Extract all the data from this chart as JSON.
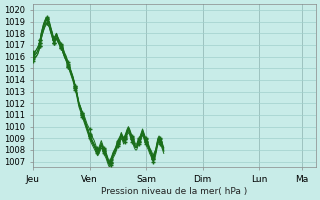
{
  "bg_color": "#c8ece8",
  "grid_color": "#a0d0cc",
  "line_color": "#1a6e1a",
  "marker_color": "#1a6e1a",
  "ylabel_text": "Pression niveau de la mer( hPa )",
  "ylim": [
    1006.5,
    1020.5
  ],
  "yticks": [
    1007,
    1008,
    1009,
    1010,
    1011,
    1012,
    1013,
    1014,
    1015,
    1016,
    1017,
    1018,
    1019,
    1020
  ],
  "xtick_labels": [
    "Jeu",
    "Ven",
    "Sam",
    "Dim",
    "Lun",
    "Ma"
  ],
  "xtick_positions": [
    0,
    48,
    96,
    144,
    192,
    228
  ],
  "xlim": [
    0,
    240
  ],
  "series": [
    [
      1016.0,
      1016.0,
      1016.2,
      1016.3,
      1016.5,
      1016.8,
      1017.2,
      1017.8,
      1018.2,
      1018.5,
      1018.8,
      1019.0,
      1019.2,
      1019.1,
      1018.8,
      1018.4,
      1018.0,
      1017.5,
      1017.2,
      1017.5,
      1017.8,
      1017.5,
      1017.2,
      1017.0,
      1016.8,
      1016.5,
      1016.2,
      1016.0,
      1015.8,
      1015.5,
      1015.2,
      1015.0,
      1014.8,
      1014.5,
      1014.2,
      1013.8,
      1013.5,
      1013.0,
      1012.5,
      1012.0,
      1011.8,
      1011.5,
      1011.2,
      1011.0,
      1010.8,
      1010.5,
      1010.2,
      1010.0,
      1009.8,
      1009.5,
      1009.2,
      1009.0,
      1008.8,
      1008.5,
      1008.2,
      1008.0,
      1008.2,
      1008.5,
      1008.8,
      1008.5,
      1008.2,
      1008.0,
      1007.8,
      1007.5,
      1007.2,
      1007.0,
      1007.2,
      1007.5,
      1007.8,
      1008.0,
      1008.2,
      1008.5,
      1008.8,
      1009.0,
      1009.2,
      1009.5,
      1009.2,
      1009.0,
      1009.2,
      1009.5,
      1009.8,
      1010.0,
      1009.8,
      1009.5,
      1009.2,
      1009.0,
      1008.8,
      1008.5,
      1008.5,
      1008.8,
      1009.0,
      1009.2,
      1009.5,
      1009.8,
      1009.5,
      1009.2,
      1009.0,
      1008.8,
      1008.5,
      1008.2,
      1008.0,
      1007.8,
      1007.5,
      1007.8,
      1008.0,
      1008.5,
      1009.0,
      1009.2,
      1009.0,
      1008.8,
      1008.5,
      1008.2
    ],
    [
      1016.2,
      1016.2,
      1016.4,
      1016.6,
      1016.8,
      1017.0,
      1017.4,
      1018.0,
      1018.4,
      1018.8,
      1019.1,
      1019.3,
      1019.4,
      1019.2,
      1019.0,
      1018.6,
      1018.2,
      1017.8,
      1017.5,
      1017.8,
      1018.0,
      1017.7,
      1017.4,
      1017.2,
      1017.0,
      1016.8,
      1016.5,
      1016.2,
      1016.0,
      1015.7,
      1015.4,
      1015.1,
      1014.8,
      1014.5,
      1014.2,
      1013.8,
      1013.4,
      1013.0,
      1012.5,
      1012.0,
      1011.7,
      1011.4,
      1011.1,
      1010.8,
      1010.5,
      1010.2,
      1009.9,
      1009.6,
      1009.3,
      1009.0,
      1008.8,
      1008.6,
      1008.4,
      1008.2,
      1008.0,
      1007.8,
      1008.0,
      1008.2,
      1008.5,
      1008.3,
      1008.0,
      1007.8,
      1007.6,
      1007.3,
      1007.0,
      1006.8,
      1007.0,
      1007.3,
      1007.6,
      1007.8,
      1008.0,
      1008.3,
      1008.6,
      1008.8,
      1009.0,
      1009.3,
      1009.1,
      1008.8,
      1009.0,
      1009.3,
      1009.6,
      1009.8,
      1009.6,
      1009.3,
      1009.0,
      1008.8,
      1008.5,
      1008.3,
      1008.3,
      1008.6,
      1008.8,
      1009.0,
      1009.3,
      1009.6,
      1009.3,
      1009.0,
      1008.8,
      1008.5,
      1008.3,
      1008.0,
      1007.8,
      1007.5,
      1007.3,
      1007.6,
      1007.8,
      1008.3,
      1008.8,
      1009.0,
      1008.8,
      1008.6,
      1008.3,
      1008.0
    ],
    [
      1015.8,
      1015.9,
      1016.0,
      1016.1,
      1016.2,
      1016.5,
      1016.9,
      1017.5,
      1017.9,
      1018.2,
      1018.5,
      1018.7,
      1018.9,
      1018.7,
      1018.5,
      1018.1,
      1017.8,
      1017.4,
      1017.2,
      1017.4,
      1017.6,
      1017.3,
      1017.1,
      1016.9,
      1016.7,
      1016.5,
      1016.2,
      1015.9,
      1015.7,
      1015.4,
      1015.1,
      1014.9,
      1014.6,
      1014.3,
      1014.0,
      1013.7,
      1013.3,
      1012.9,
      1012.4,
      1011.9,
      1011.6,
      1011.3,
      1011.0,
      1010.7,
      1010.4,
      1010.1,
      1009.8,
      1009.5,
      1009.2,
      1008.9,
      1008.7,
      1008.5,
      1008.3,
      1008.1,
      1007.9,
      1007.7,
      1007.9,
      1008.1,
      1008.4,
      1008.2,
      1007.9,
      1007.7,
      1007.5,
      1007.2,
      1006.9,
      1006.7,
      1006.9,
      1007.2,
      1007.5,
      1007.7,
      1007.9,
      1008.2,
      1008.5,
      1008.7,
      1008.9,
      1009.2,
      1009.0,
      1008.7,
      1008.9,
      1009.2,
      1009.5,
      1009.7,
      1009.5,
      1009.2,
      1008.9,
      1008.7,
      1008.4,
      1008.2,
      1008.2,
      1008.5,
      1008.7,
      1008.9,
      1009.2,
      1009.5,
      1009.2,
      1008.9,
      1008.7,
      1008.4,
      1008.2,
      1007.9,
      1007.7,
      1007.4,
      1007.2,
      1007.5,
      1007.7,
      1008.2,
      1008.7,
      1008.9,
      1008.7,
      1008.5,
      1008.2,
      1007.9
    ],
    [
      1016.0,
      1016.1,
      1016.2,
      1016.3,
      1016.5,
      1016.8,
      1017.2,
      1017.8,
      1018.2,
      1018.6,
      1018.9,
      1019.1,
      1019.2,
      1019.0,
      1018.8,
      1018.4,
      1018.1,
      1017.7,
      1017.4,
      1017.7,
      1017.9,
      1017.6,
      1017.3,
      1017.1,
      1016.9,
      1016.7,
      1016.4,
      1016.1,
      1015.9,
      1015.6,
      1015.3,
      1015.0,
      1014.7,
      1014.4,
      1014.1,
      1013.7,
      1013.3,
      1012.9,
      1012.4,
      1011.9,
      1011.6,
      1011.3,
      1011.0,
      1010.7,
      1010.4,
      1010.1,
      1009.8,
      1009.5,
      1009.2,
      1008.9,
      1008.7,
      1008.5,
      1008.3,
      1008.1,
      1007.9,
      1007.7,
      1007.9,
      1008.1,
      1008.4,
      1008.2,
      1007.9,
      1007.7,
      1007.5,
      1007.2,
      1006.9,
      1006.7,
      1006.9,
      1007.2,
      1007.5,
      1007.7,
      1007.9,
      1008.2,
      1008.5,
      1008.7,
      1008.9,
      1009.2,
      1009.0,
      1008.7,
      1008.9,
      1009.2,
      1009.5,
      1009.7,
      1009.5,
      1009.2,
      1008.9,
      1008.7,
      1008.4,
      1008.2,
      1008.2,
      1008.5,
      1008.7,
      1008.9,
      1009.2,
      1009.5,
      1009.2,
      1008.9,
      1008.7,
      1008.4,
      1008.2,
      1007.9,
      1007.7,
      1007.4,
      1007.2,
      1007.5,
      1007.7,
      1008.2,
      1008.7,
      1008.9,
      1008.7,
      1008.5,
      1008.2,
      1007.9
    ],
    [
      1015.6,
      1015.7,
      1015.9,
      1016.0,
      1016.2,
      1016.5,
      1016.9,
      1017.5,
      1017.9,
      1018.3,
      1018.6,
      1018.8,
      1018.9,
      1018.7,
      1018.5,
      1018.1,
      1017.8,
      1017.4,
      1017.2,
      1017.4,
      1017.6,
      1017.3,
      1017.1,
      1016.9,
      1016.7,
      1016.5,
      1016.2,
      1015.9,
      1015.7,
      1015.4,
      1015.1,
      1014.8,
      1014.5,
      1014.2,
      1013.9,
      1013.5,
      1013.1,
      1012.7,
      1012.2,
      1011.7,
      1011.4,
      1011.1,
      1010.8,
      1010.5,
      1010.2,
      1009.9,
      1009.6,
      1009.3,
      1009.0,
      1008.7,
      1008.5,
      1008.3,
      1008.1,
      1007.9,
      1007.7,
      1007.5,
      1007.7,
      1007.9,
      1008.2,
      1008.0,
      1007.7,
      1007.5,
      1007.3,
      1007.0,
      1006.7,
      1006.5,
      1006.7,
      1007.0,
      1007.3,
      1007.5,
      1007.7,
      1008.0,
      1008.3,
      1008.5,
      1008.7,
      1009.0,
      1008.8,
      1008.5,
      1008.7,
      1009.0,
      1009.3,
      1009.5,
      1009.3,
      1009.0,
      1008.7,
      1008.5,
      1008.2,
      1008.0,
      1008.0,
      1008.3,
      1008.5,
      1008.7,
      1009.0,
      1009.3,
      1009.0,
      1008.7,
      1008.5,
      1008.2,
      1008.0,
      1007.7,
      1007.5,
      1007.2,
      1007.0,
      1007.3,
      1007.5,
      1008.0,
      1008.5,
      1008.7,
      1008.5,
      1008.3,
      1008.0,
      1007.7
    ],
    [
      1016.4,
      1016.4,
      1016.5,
      1016.6,
      1016.8,
      1017.0,
      1017.4,
      1018.0,
      1018.4,
      1018.8,
      1019.0,
      1019.2,
      1019.3,
      1019.1,
      1018.9,
      1018.5,
      1018.2,
      1017.8,
      1017.6,
      1017.8,
      1018.0,
      1017.7,
      1017.5,
      1017.3,
      1017.1,
      1016.9,
      1016.6,
      1016.3,
      1016.1,
      1015.8,
      1015.5,
      1015.2,
      1014.9,
      1014.6,
      1014.3,
      1013.9,
      1013.5,
      1013.1,
      1012.6,
      1012.1,
      1011.8,
      1011.5,
      1011.2,
      1010.9,
      1010.6,
      1010.3,
      1010.0,
      1009.7,
      1009.4,
      1009.1,
      1008.9,
      1008.7,
      1008.5,
      1008.3,
      1008.1,
      1007.9,
      1008.1,
      1008.3,
      1008.6,
      1008.4,
      1008.1,
      1007.9,
      1007.7,
      1007.4,
      1007.1,
      1006.9,
      1007.1,
      1007.4,
      1007.7,
      1007.9,
      1008.1,
      1008.4,
      1008.7,
      1008.9,
      1009.1,
      1009.4,
      1009.2,
      1008.9,
      1009.1,
      1009.4,
      1009.7,
      1009.9,
      1009.7,
      1009.4,
      1009.1,
      1008.9,
      1008.6,
      1008.4,
      1008.4,
      1008.7,
      1008.9,
      1009.1,
      1009.4,
      1009.7,
      1009.4,
      1009.1,
      1008.9,
      1008.6,
      1008.4,
      1008.1,
      1007.9,
      1007.6,
      1007.4,
      1007.7,
      1007.9,
      1008.4,
      1008.9,
      1009.1,
      1008.9,
      1008.7,
      1008.4,
      1008.1
    ]
  ]
}
